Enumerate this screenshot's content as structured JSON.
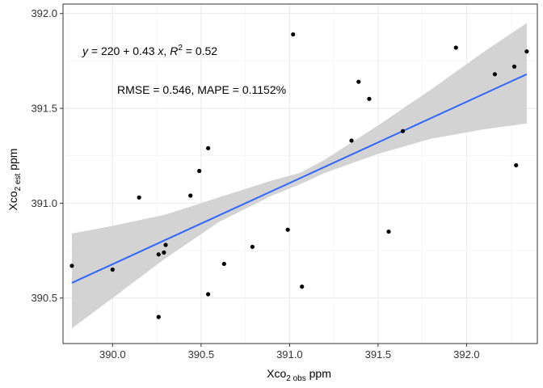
{
  "chart_data": {
    "type": "scatter",
    "xlabel": {
      "main": "Xco",
      "sub": "2 obs",
      "unit": " ppm"
    },
    "ylabel": {
      "main": "Xco",
      "sub": "2 est",
      "unit": " ppm"
    },
    "xlim": [
      389.72,
      392.4
    ],
    "ylim": [
      390.26,
      392.05
    ],
    "x_ticks": [
      "390.0",
      "390.5",
      "391.0",
      "391.5",
      "392.0"
    ],
    "y_ticks": [
      "390.5",
      "391.0",
      "391.5",
      "392.0"
    ],
    "grid": true,
    "points": [
      {
        "x": 389.77,
        "y": 390.67
      },
      {
        "x": 390.0,
        "y": 390.65
      },
      {
        "x": 390.15,
        "y": 391.03
      },
      {
        "x": 390.26,
        "y": 390.73
      },
      {
        "x": 390.29,
        "y": 390.74
      },
      {
        "x": 390.3,
        "y": 390.78
      },
      {
        "x": 390.26,
        "y": 390.4
      },
      {
        "x": 390.44,
        "y": 391.04
      },
      {
        "x": 390.49,
        "y": 391.17
      },
      {
        "x": 390.54,
        "y": 391.29
      },
      {
        "x": 390.54,
        "y": 390.52
      },
      {
        "x": 390.63,
        "y": 390.68
      },
      {
        "x": 390.79,
        "y": 390.77
      },
      {
        "x": 390.99,
        "y": 390.86
      },
      {
        "x": 391.02,
        "y": 391.89
      },
      {
        "x": 391.07,
        "y": 390.56
      },
      {
        "x": 391.35,
        "y": 391.33
      },
      {
        "x": 391.39,
        "y": 391.64
      },
      {
        "x": 391.45,
        "y": 391.55
      },
      {
        "x": 391.56,
        "y": 390.85
      },
      {
        "x": 391.64,
        "y": 391.38
      },
      {
        "x": 391.94,
        "y": 391.82
      },
      {
        "x": 392.16,
        "y": 391.68
      },
      {
        "x": 392.27,
        "y": 391.72
      },
      {
        "x": 392.28,
        "y": 391.2
      },
      {
        "x": 392.34,
        "y": 391.8
      }
    ],
    "fit_line": {
      "x": [
        389.77,
        392.34
      ],
      "y": [
        390.58,
        391.68
      ],
      "color": "#3366FF"
    },
    "confidence_band": {
      "x": [
        389.77,
        390.0,
        390.3,
        390.6,
        390.9,
        391.06,
        391.2,
        391.5,
        391.8,
        392.1,
        392.34
      ],
      "lower": [
        390.34,
        390.5,
        390.71,
        390.9,
        391.04,
        391.1,
        391.16,
        391.26,
        391.34,
        391.39,
        391.42
      ],
      "upper": [
        390.84,
        390.88,
        390.94,
        391.03,
        391.12,
        391.16,
        391.23,
        391.41,
        391.6,
        391.8,
        391.95
      ],
      "color": "#D3D3D3"
    },
    "annotations": {
      "equation": {
        "prefix": "y = 220 + 0.43 x,  R",
        "sup": "2",
        "suffix": " = 52",
        "suffix_full": " = 0.52"
      },
      "metrics": "RMSE = 0.546, MAPE = 0.1152%"
    }
  }
}
